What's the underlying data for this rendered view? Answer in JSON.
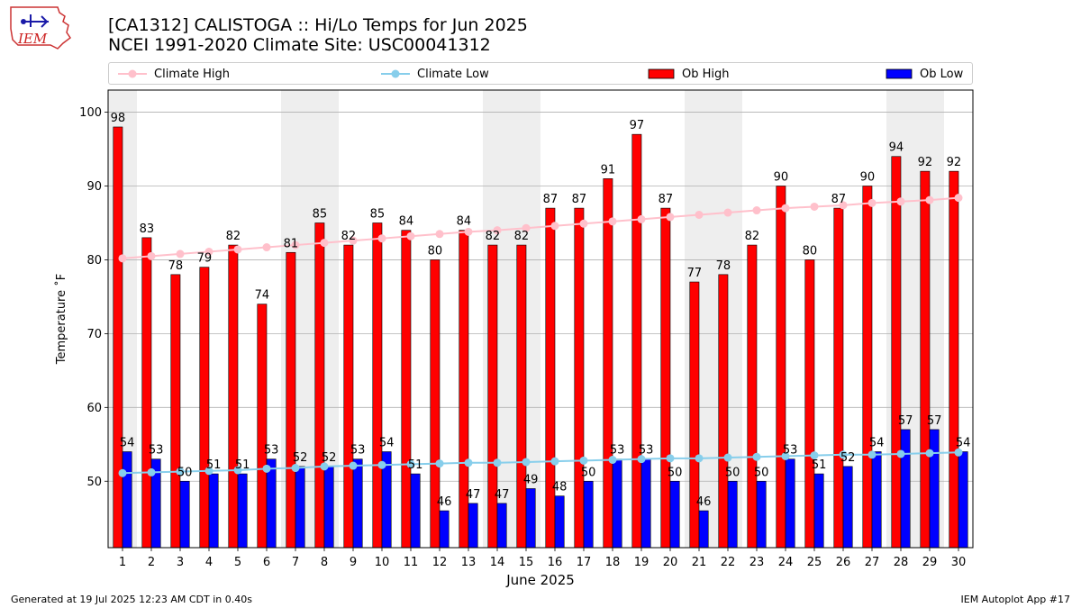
{
  "header": {
    "title_line1": "[CA1312] CALISTOGA :: Hi/Lo Temps for Jun 2025",
    "title_line2": "NCEI 1991-2020 Climate Site: USC00041312",
    "logo_text": "IEM"
  },
  "footer": {
    "left": "Generated at 19 Jul 2025 12:23 AM CDT in 0.40s",
    "right": "IEM Autoplot App #17"
  },
  "colors": {
    "ob_high": "#ff0000",
    "ob_low": "#0000ff",
    "climate_high": "#ffc0cb",
    "climate_low": "#87ceeb",
    "weekend_shade": "#eeeeee",
    "grid": "#b0b0b0"
  },
  "chart_data": {
    "type": "bar",
    "xlabel": "June 2025",
    "ylabel": "Temperature ˚F",
    "ylim": [
      41,
      103
    ],
    "yticks": [
      50,
      60,
      70,
      80,
      90,
      100
    ],
    "grid": "horizontal",
    "legend_position": "top",
    "categories": [
      "1",
      "2",
      "3",
      "4",
      "5",
      "6",
      "7",
      "8",
      "9",
      "10",
      "11",
      "12",
      "13",
      "14",
      "15",
      "16",
      "17",
      "18",
      "19",
      "20",
      "21",
      "22",
      "23",
      "24",
      "25",
      "26",
      "27",
      "28",
      "29",
      "30"
    ],
    "shaded_days": [
      [
        1,
        1
      ],
      [
        7,
        8
      ],
      [
        14,
        15
      ],
      [
        21,
        22
      ],
      [
        28,
        29
      ]
    ],
    "series": [
      {
        "name": "Ob High",
        "kind": "bar",
        "values": [
          98,
          83,
          78,
          79,
          82,
          74,
          81,
          85,
          82,
          85,
          84,
          80,
          84,
          82,
          82,
          87,
          87,
          91,
          97,
          87,
          77,
          78,
          82,
          90,
          80,
          87,
          90,
          94,
          92,
          92
        ]
      },
      {
        "name": "Ob Low",
        "kind": "bar",
        "values": [
          54,
          53,
          50,
          51,
          51,
          53,
          52,
          52,
          53,
          54,
          51,
          46,
          47,
          47,
          49,
          48,
          50,
          53,
          53,
          50,
          46,
          50,
          50,
          53,
          51,
          52,
          54,
          57,
          57,
          54
        ]
      },
      {
        "name": "Climate High",
        "kind": "line",
        "values": [
          80.2,
          80.5,
          80.8,
          81.1,
          81.4,
          81.7,
          82.0,
          82.3,
          82.6,
          82.9,
          83.2,
          83.5,
          83.8,
          84.0,
          84.3,
          84.6,
          84.9,
          85.2,
          85.5,
          85.8,
          86.1,
          86.4,
          86.7,
          87.0,
          87.2,
          87.4,
          87.7,
          87.9,
          88.1,
          88.4
        ]
      },
      {
        "name": "Climate Low",
        "kind": "line",
        "values": [
          51.1,
          51.2,
          51.3,
          51.4,
          51.5,
          51.7,
          51.8,
          52.0,
          52.1,
          52.2,
          52.3,
          52.4,
          52.5,
          52.5,
          52.6,
          52.7,
          52.8,
          52.9,
          53.0,
          53.1,
          53.1,
          53.2,
          53.3,
          53.4,
          53.5,
          53.6,
          53.6,
          53.7,
          53.8,
          53.9
        ]
      }
    ]
  }
}
